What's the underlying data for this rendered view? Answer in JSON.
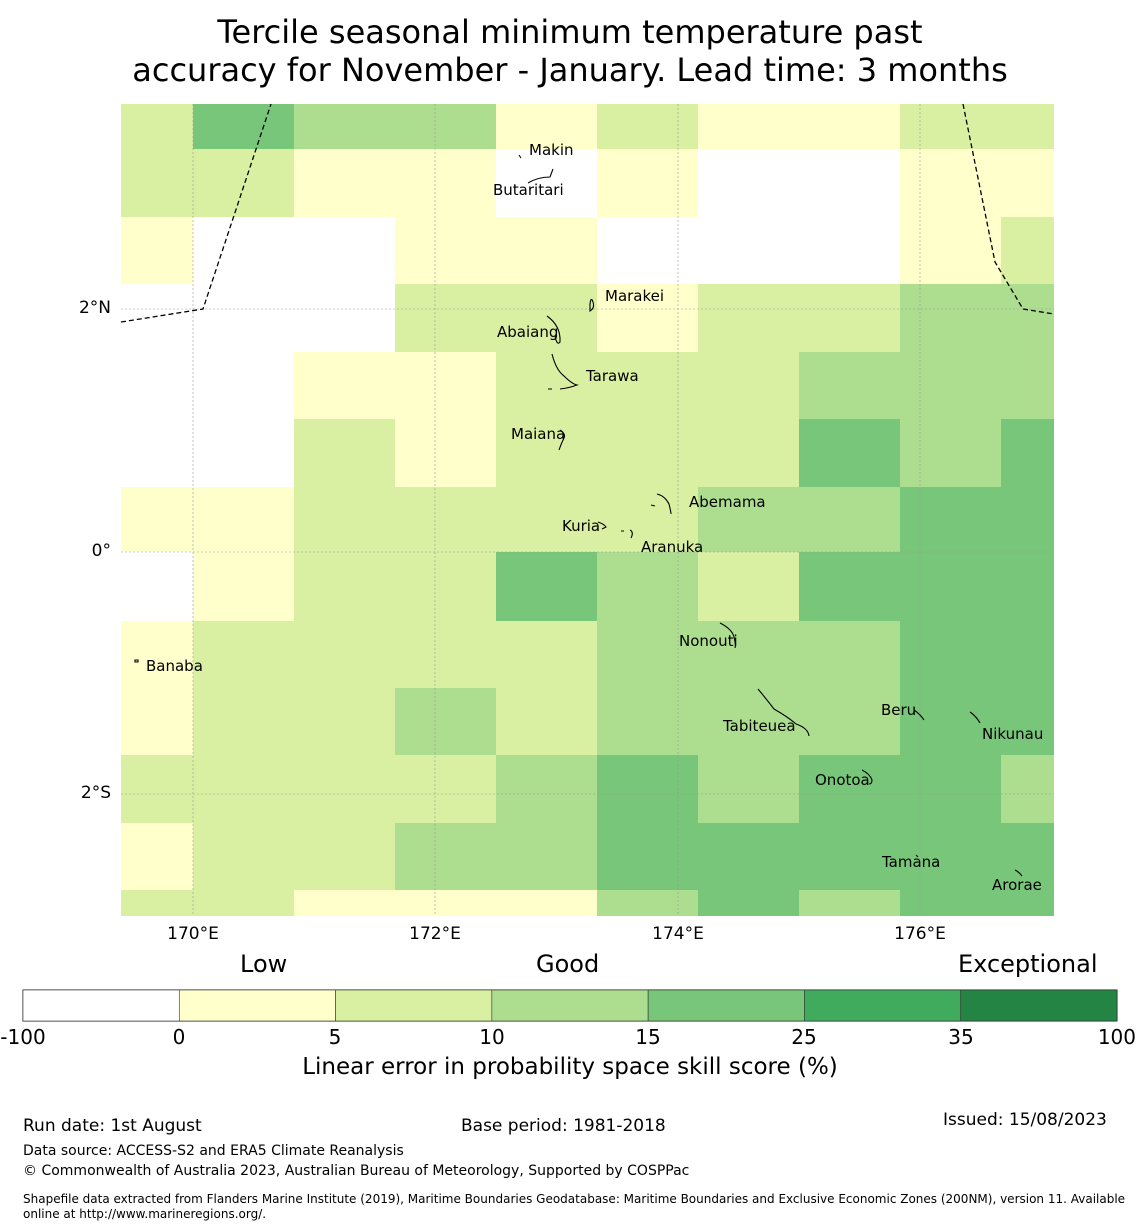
{
  "title": {
    "line1": "Tercile seasonal minimum temperature past",
    "line2": "accuracy for November - January. Lead time: 3 months"
  },
  "map": {
    "lat_labels": [
      "2°N",
      "0°",
      "2°S"
    ],
    "lon_labels": [
      "170°E",
      "172°E",
      "174°E",
      "176°E"
    ],
    "places": [
      "Makin",
      "Butaritari",
      "Marakei",
      "Abaiang",
      "Tarawa",
      "Maiana",
      "Abemama",
      "Kuria",
      "Aranuka",
      "Nonouti",
      "Banaba",
      "Tabiteuea",
      "Beru",
      "Nikunau",
      "Onotoa",
      "Tamana",
      "Arorae"
    ],
    "grid_category_rows": [
      [
        2,
        4,
        3,
        3,
        1,
        2,
        1,
        1,
        2,
        2
      ],
      [
        2,
        2,
        1,
        1,
        0,
        1,
        0,
        0,
        1,
        1
      ],
      [
        1,
        0,
        0,
        1,
        1,
        0,
        0,
        0,
        1,
        2
      ],
      [
        0,
        0,
        0,
        2,
        2,
        1,
        2,
        2,
        3,
        3
      ],
      [
        0,
        0,
        1,
        1,
        2,
        2,
        2,
        3,
        3,
        3
      ],
      [
        0,
        0,
        2,
        1,
        2,
        2,
        2,
        4,
        3,
        4
      ],
      [
        1,
        1,
        2,
        2,
        2,
        2,
        3,
        3,
        4,
        4
      ],
      [
        0,
        1,
        2,
        2,
        4,
        3,
        2,
        4,
        4,
        4
      ],
      [
        1,
        2,
        2,
        2,
        2,
        3,
        3,
        3,
        4,
        4
      ],
      [
        1,
        2,
        2,
        3,
        2,
        3,
        3,
        3,
        4,
        4
      ],
      [
        2,
        2,
        2,
        2,
        3,
        4,
        3,
        4,
        4,
        3
      ],
      [
        1,
        2,
        2,
        3,
        3,
        4,
        4,
        4,
        4,
        4
      ],
      [
        2,
        2,
        1,
        1,
        1,
        3,
        4,
        3,
        4,
        4
      ]
    ]
  },
  "legend": {
    "ratings": [
      "Low",
      "Good",
      "Exceptional"
    ],
    "ticks": [
      "-100",
      "0",
      "5",
      "10",
      "15",
      "25",
      "35",
      "100"
    ],
    "colors": [
      "#ffffff",
      "#ffffcc",
      "#d9f0a3",
      "#addd8e",
      "#78c679",
      "#41ab5d",
      "#238443"
    ],
    "label": "Linear error in probability space skill score (%)"
  },
  "footer": {
    "run_date": "Run date: 1st August",
    "base_period": "Base period: 1981-2018",
    "issued": "Issued: 15/08/2023",
    "data_source": "Data source: ACCESS-S2 and ERA5 Climate Reanalysis",
    "copyright": "© Commonwealth of Australia 2023, Australian Bureau of Meteorology, Supported by COSPPac",
    "shapefile_line1": "Shapefile data extracted from Flanders Marine Institute (2019), Maritime Boundaries Geodatabase: Maritime Boundaries and Exclusive Economic Zones (200NM), version 11. Available",
    "shapefile_line2": "online at http://www.marineregions.org/."
  }
}
